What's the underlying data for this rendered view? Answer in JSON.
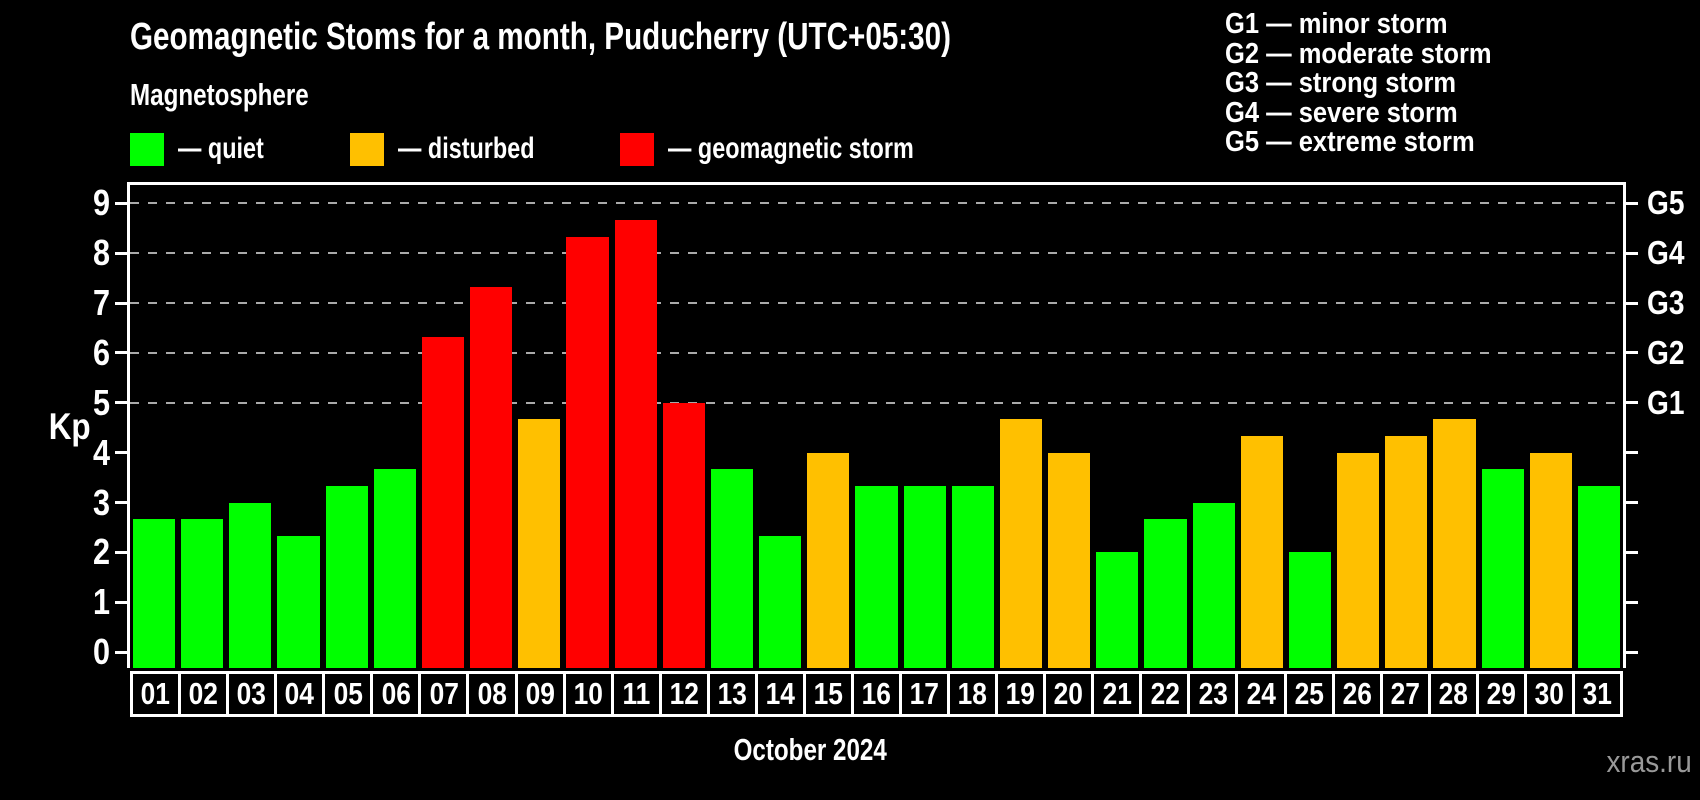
{
  "header": {
    "title": "Geomagnetic Stoms for a month, Puducherry (UTC+05:30)",
    "subtitle": "Magnetosphere"
  },
  "legend": {
    "items": [
      {
        "name": "quiet",
        "label": "— quiet",
        "color": "#00ff00"
      },
      {
        "name": "disturbed",
        "label": "— disturbed",
        "color": "#ffc000"
      },
      {
        "name": "storm",
        "label": "— geomagnetic storm",
        "color": "#ff0000"
      }
    ]
  },
  "g_scale_legend": {
    "items": [
      {
        "label": "G1 — minor storm"
      },
      {
        "label": "G2 — moderate storm"
      },
      {
        "label": "G3 — strong storm"
      },
      {
        "label": "G4 — severe storm"
      },
      {
        "label": "G5 — extreme storm"
      }
    ]
  },
  "chart_data": {
    "type": "bar",
    "title": "Geomagnetic Stoms for a month, Puducherry (UTC+05:30)",
    "ylabel": "Kp",
    "xlabel": "October 2024",
    "categories": [
      "01",
      "02",
      "03",
      "04",
      "05",
      "06",
      "07",
      "08",
      "09",
      "10",
      "11",
      "12",
      "13",
      "14",
      "15",
      "16",
      "17",
      "18",
      "19",
      "20",
      "21",
      "22",
      "23",
      "24",
      "25",
      "26",
      "27",
      "28",
      "29",
      "30",
      "31"
    ],
    "values": [
      2.67,
      2.67,
      3.0,
      2.33,
      3.33,
      3.67,
      6.33,
      7.33,
      4.67,
      8.33,
      8.67,
      5.0,
      3.67,
      2.33,
      4.0,
      3.33,
      3.33,
      3.33,
      4.67,
      4.0,
      2.0,
      2.67,
      3.0,
      4.33,
      2.0,
      4.0,
      4.33,
      4.67,
      3.67,
      4.0,
      3.33
    ],
    "ylim": [
      0,
      9
    ],
    "y_ticks": [
      0,
      1,
      2,
      3,
      4,
      5,
      6,
      7,
      8,
      9
    ],
    "gridlines_at": [
      5,
      6,
      7,
      8,
      9
    ],
    "grid": true,
    "right_axis": {
      "labels": [
        "G1",
        "G2",
        "G3",
        "G4",
        "G5"
      ],
      "at_kp": [
        5,
        6,
        7,
        8,
        9
      ]
    },
    "color_rules": {
      "storm_min_kp": 5,
      "disturbed_min_kp": 4
    },
    "colors": {
      "quiet": "#00ff00",
      "disturbed": "#ffc000",
      "storm": "#ff0000"
    },
    "gridline_color": "#aaaaaa",
    "axis_color": "#ffffff",
    "background_color": "#000000"
  },
  "footer": {
    "month_label": "October 2024",
    "watermark": "xras.ru"
  }
}
